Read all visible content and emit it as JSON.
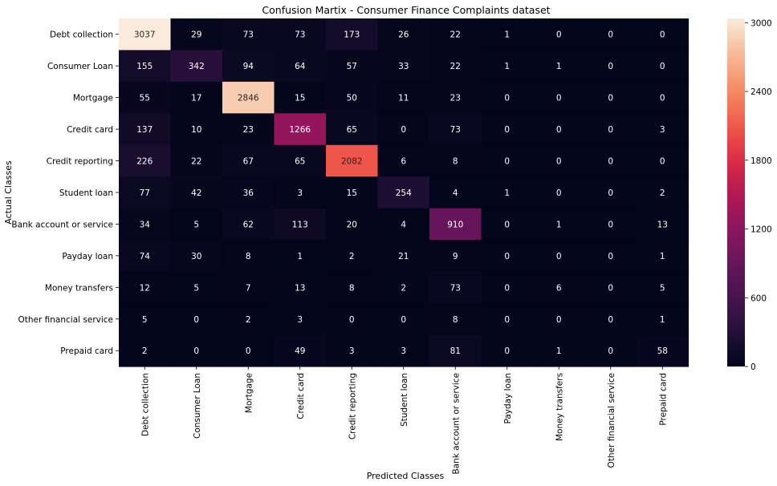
{
  "chart_data": {
    "type": "heatmap",
    "title": "Confusion Martix - Consumer Finance Complaints dataset",
    "xlabel": "Predicted Classes",
    "ylabel": "Actual Classes",
    "rows": [
      "Debt collection",
      "Consumer Loan",
      "Mortgage",
      "Credit card",
      "Credit reporting",
      "Student loan",
      "Bank account or service",
      "Payday loan",
      "Money transfers",
      "Other financial service",
      "Prepaid card"
    ],
    "cols": [
      "Debt collection",
      "Consumer Loan",
      "Mortgage",
      "Credit card",
      "Credit reporting",
      "Student loan",
      "Bank account or service",
      "Payday loan",
      "Money transfers",
      "Other financial service",
      "Prepaid card"
    ],
    "values": [
      [
        3037,
        29,
        73,
        73,
        173,
        26,
        22,
        1,
        0,
        0,
        0
      ],
      [
        155,
        342,
        94,
        64,
        57,
        33,
        22,
        1,
        1,
        0,
        0
      ],
      [
        55,
        17,
        2846,
        15,
        50,
        11,
        23,
        0,
        0,
        0,
        0
      ],
      [
        137,
        10,
        23,
        1266,
        65,
        0,
        73,
        0,
        0,
        0,
        3
      ],
      [
        226,
        22,
        67,
        65,
        2082,
        6,
        8,
        0,
        0,
        0,
        0
      ],
      [
        77,
        42,
        36,
        3,
        15,
        254,
        4,
        1,
        0,
        0,
        2
      ],
      [
        34,
        5,
        62,
        113,
        20,
        4,
        910,
        0,
        1,
        0,
        13
      ],
      [
        74,
        30,
        8,
        1,
        2,
        21,
        9,
        0,
        0,
        0,
        1
      ],
      [
        12,
        5,
        7,
        13,
        8,
        2,
        73,
        0,
        6,
        0,
        5
      ],
      [
        5,
        0,
        2,
        3,
        0,
        0,
        8,
        0,
        0,
        0,
        1
      ],
      [
        2,
        0,
        0,
        49,
        3,
        3,
        81,
        0,
        1,
        0,
        58
      ]
    ],
    "colorbar": {
      "vmin": 0,
      "vmax": 3037,
      "ticks": [
        0,
        600,
        1200,
        1800,
        2400,
        3000
      ],
      "colormap": "rocket"
    }
  }
}
